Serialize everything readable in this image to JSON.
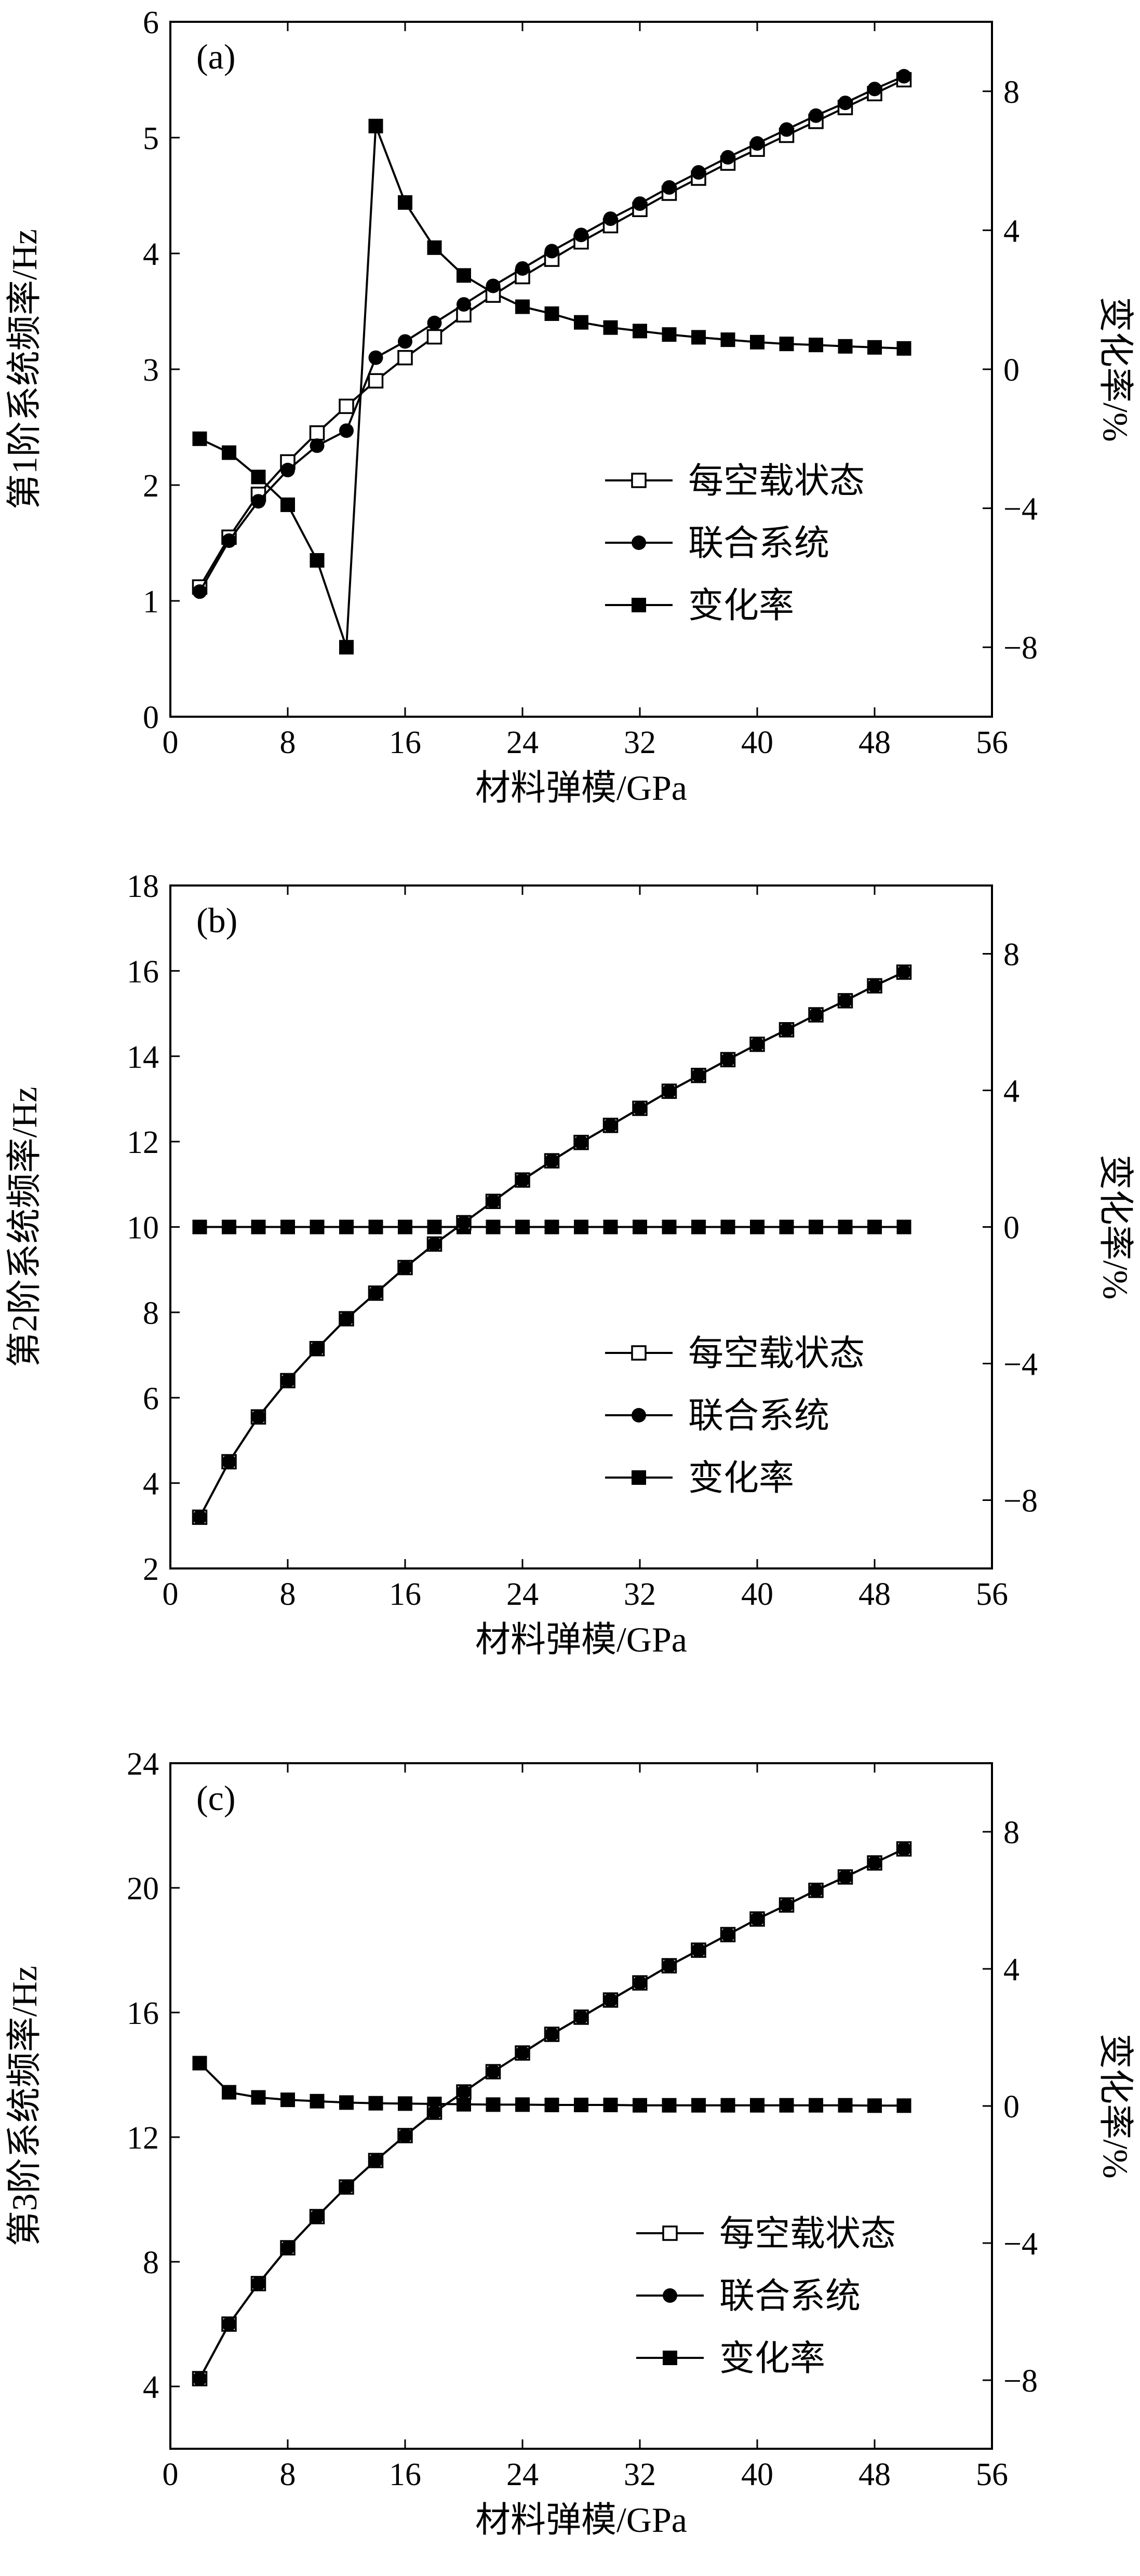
{
  "chart_data": [
    {
      "type": "line",
      "panel_label": "(a)",
      "xlabel": "材料弹模/GPa",
      "ylabel": "第1阶系统频率/Hz",
      "y2label": "变化率/%",
      "xlim": [
        0,
        56
      ],
      "xticks": [
        "0",
        "8",
        "16",
        "24",
        "32",
        "40",
        "48",
        "56"
      ],
      "ylim": [
        0,
        6
      ],
      "yticks": [
        "0",
        "1",
        "2",
        "3",
        "4",
        "5",
        "6"
      ],
      "y2lim": [
        -10,
        10
      ],
      "y2ticks": [
        "−8",
        "−4",
        "0",
        "4",
        "8"
      ],
      "legend_position": "lower-right",
      "x": [
        2,
        4,
        6,
        8,
        10,
        12,
        14,
        16,
        18,
        20,
        22,
        24,
        26,
        28,
        30,
        32,
        34,
        36,
        38,
        40,
        42,
        44,
        46,
        48,
        50
      ],
      "series": [
        {
          "name": "每空载状态",
          "marker": "open-square",
          "axis": "left",
          "values": [
            1.12,
            1.55,
            1.92,
            2.2,
            2.45,
            2.68,
            2.9,
            3.1,
            3.28,
            3.47,
            3.64,
            3.8,
            3.95,
            4.1,
            4.24,
            4.38,
            4.52,
            4.65,
            4.78,
            4.9,
            5.02,
            5.14,
            5.26,
            5.38,
            5.5
          ]
        },
        {
          "name": "联合系统",
          "marker": "filled-circle",
          "axis": "left",
          "values": [
            1.08,
            1.52,
            1.86,
            2.13,
            2.34,
            2.47,
            3.1,
            3.24,
            3.4,
            3.56,
            3.72,
            3.87,
            4.02,
            4.16,
            4.3,
            4.43,
            4.57,
            4.7,
            4.83,
            4.95,
            5.07,
            5.19,
            5.3,
            5.42,
            5.53
          ]
        },
        {
          "name": "变化率",
          "marker": "filled-square",
          "axis": "right",
          "values": [
            -2.0,
            -2.4,
            -3.1,
            -3.9,
            -5.5,
            -8.0,
            7.0,
            4.8,
            3.5,
            2.7,
            2.2,
            1.8,
            1.6,
            1.35,
            1.2,
            1.1,
            1.0,
            0.92,
            0.85,
            0.78,
            0.73,
            0.7,
            0.66,
            0.63,
            0.6
          ]
        }
      ]
    },
    {
      "type": "line",
      "panel_label": "(b)",
      "xlabel": "材料弹模/GPa",
      "ylabel": "第2阶系统频率/Hz",
      "y2label": "变化率/%",
      "xlim": [
        0,
        56
      ],
      "xticks": [
        "0",
        "8",
        "16",
        "24",
        "32",
        "40",
        "48",
        "56"
      ],
      "ylim": [
        2,
        18
      ],
      "yticks": [
        "2",
        "4",
        "6",
        "8",
        "10",
        "12",
        "14",
        "16",
        "18"
      ],
      "y2lim": [
        -10,
        10
      ],
      "y2ticks": [
        "−8",
        "−4",
        "0",
        "4",
        "8"
      ],
      "legend_position": "lower-right",
      "x": [
        2,
        4,
        6,
        8,
        10,
        12,
        14,
        16,
        18,
        20,
        22,
        24,
        26,
        28,
        30,
        32,
        34,
        36,
        38,
        40,
        42,
        44,
        46,
        48,
        50
      ],
      "series": [
        {
          "name": "每空载状态",
          "marker": "open-square",
          "axis": "left",
          "values": [
            3.2,
            4.5,
            5.55,
            6.4,
            7.15,
            7.85,
            8.45,
            9.05,
            9.6,
            10.1,
            10.6,
            11.1,
            11.55,
            11.98,
            12.38,
            12.78,
            13.18,
            13.55,
            13.92,
            14.28,
            14.62,
            14.97,
            15.3,
            15.65,
            15.97
          ]
        },
        {
          "name": "联合系统",
          "marker": "filled-circle",
          "axis": "left",
          "values": [
            3.2,
            4.5,
            5.55,
            6.4,
            7.15,
            7.85,
            8.45,
            9.05,
            9.6,
            10.1,
            10.6,
            11.1,
            11.55,
            11.98,
            12.38,
            12.78,
            13.18,
            13.55,
            13.92,
            14.28,
            14.62,
            14.97,
            15.3,
            15.65,
            15.97
          ]
        },
        {
          "name": "变化率",
          "marker": "filled-square",
          "axis": "right",
          "values": [
            0,
            0,
            0,
            0,
            0,
            0,
            0,
            0,
            0,
            0,
            0,
            0,
            0,
            0,
            0,
            0,
            0,
            0,
            0,
            0,
            0,
            0,
            0,
            0,
            0
          ]
        }
      ]
    },
    {
      "type": "line",
      "panel_label": "(c)",
      "xlabel": "材料弹模/GPa",
      "ylabel": "第3阶系统频率/Hz",
      "y2label": "变化率/%",
      "xlim": [
        0,
        56
      ],
      "xticks": [
        "0",
        "8",
        "16",
        "24",
        "32",
        "40",
        "48",
        "56"
      ],
      "ylim": [
        2,
        24
      ],
      "yticks": [
        "4",
        "8",
        "12",
        "16",
        "20",
        "24"
      ],
      "y2lim": [
        -10,
        10
      ],
      "y2ticks": [
        "−8",
        "−4",
        "0",
        "4",
        "8"
      ],
      "legend_position": "lower-right",
      "x": [
        2,
        4,
        6,
        8,
        10,
        12,
        14,
        16,
        18,
        20,
        22,
        24,
        26,
        28,
        30,
        32,
        34,
        36,
        38,
        40,
        42,
        44,
        46,
        48,
        50
      ],
      "series": [
        {
          "name": "每空载状态",
          "marker": "open-square",
          "axis": "left",
          "values": [
            4.25,
            6.0,
            7.3,
            8.45,
            9.45,
            10.4,
            11.25,
            12.05,
            12.8,
            13.45,
            14.1,
            14.7,
            15.3,
            15.85,
            16.4,
            16.95,
            17.5,
            18.0,
            18.5,
            19.0,
            19.45,
            19.92,
            20.35,
            20.8,
            21.25
          ]
        },
        {
          "name": "联合系统",
          "marker": "filled-circle",
          "axis": "left",
          "values": [
            4.25,
            6.0,
            7.3,
            8.45,
            9.45,
            10.4,
            11.25,
            12.05,
            12.8,
            13.45,
            14.1,
            14.7,
            15.3,
            15.85,
            16.4,
            16.95,
            17.5,
            18.0,
            18.5,
            19.0,
            19.45,
            19.92,
            20.35,
            20.8,
            21.25
          ]
        },
        {
          "name": "变化率",
          "marker": "filled-square",
          "axis": "right",
          "values": [
            1.25,
            0.4,
            0.25,
            0.18,
            0.14,
            0.1,
            0.08,
            0.07,
            0.06,
            0.05,
            0.04,
            0.04,
            0.03,
            0.03,
            0.03,
            0.02,
            0.02,
            0.02,
            0.02,
            0.02,
            0.02,
            0.02,
            0.02,
            0.01,
            0.01
          ]
        }
      ]
    }
  ]
}
